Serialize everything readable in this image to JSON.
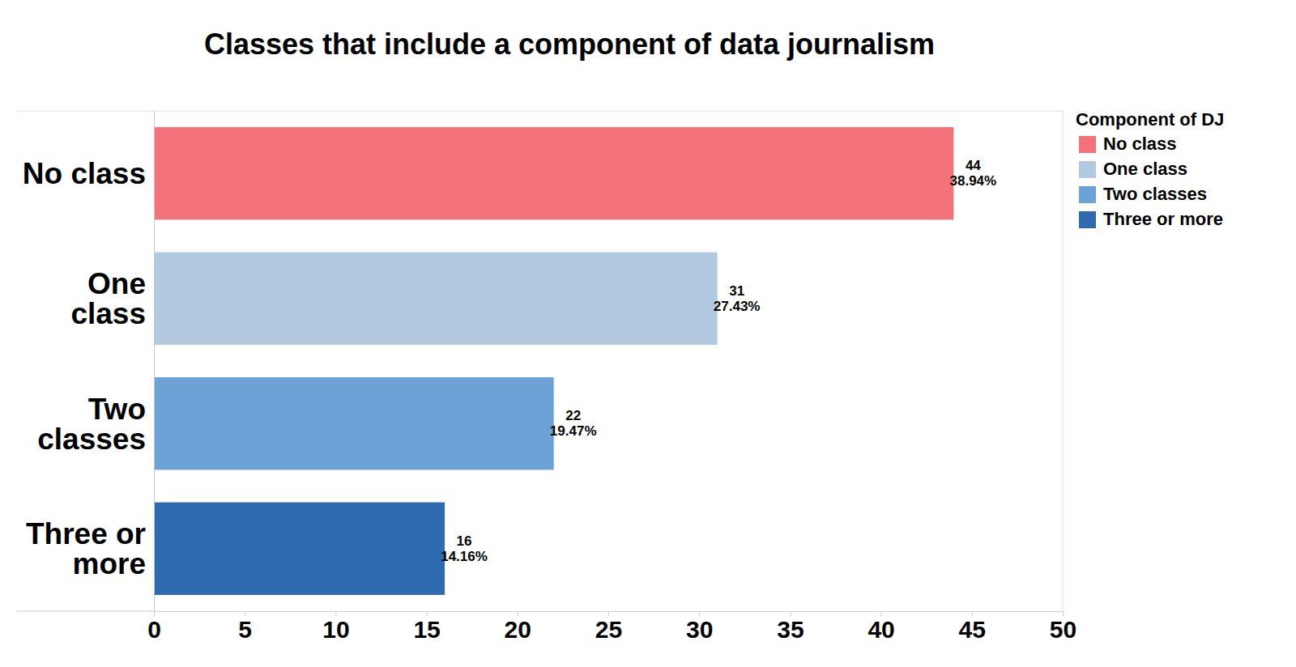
{
  "chart_data": {
    "type": "bar",
    "orientation": "horizontal",
    "title": "Classes that include a component of data journalism",
    "categories": [
      "No class",
      "One class",
      "Two classes",
      "Three or more"
    ],
    "values": [
      44,
      31,
      22,
      16
    ],
    "percentages": [
      38.94,
      27.43,
      19.47,
      14.16
    ],
    "percentage_labels": [
      "38.94%",
      "27.43%",
      "19.47%",
      "14.16%"
    ],
    "colors": [
      "#f4727a",
      "#b3c8e1",
      "#6ca3d6",
      "#2e6ab0"
    ],
    "xlim": [
      0,
      50
    ],
    "xticks": [
      0,
      5,
      10,
      15,
      20,
      25,
      30,
      35,
      40,
      45,
      50
    ],
    "grid": false,
    "data_labels": true,
    "legend": "right",
    "legend_title": "Component of DJ"
  }
}
